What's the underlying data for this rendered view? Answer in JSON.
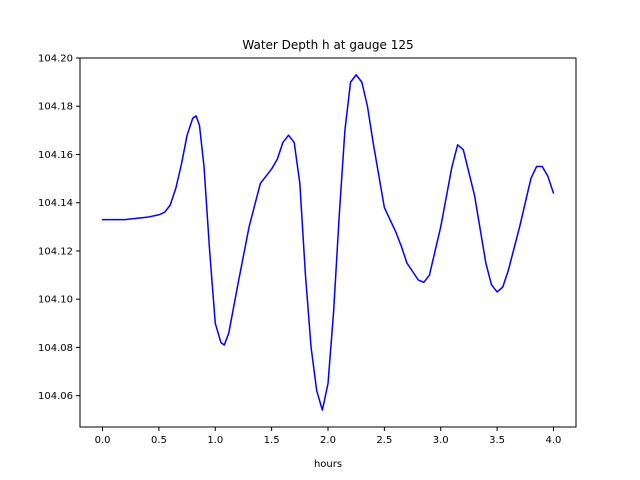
{
  "chart_data": {
    "type": "line",
    "title": "Water Depth h at gauge 125",
    "xlabel": "hours",
    "ylabel": "",
    "xlim": [
      -0.2,
      4.2
    ],
    "ylim": [
      104.047,
      104.2
    ],
    "grid": false,
    "xticks": [
      0.0,
      0.5,
      1.0,
      1.5,
      2.0,
      2.5,
      3.0,
      3.5,
      4.0
    ],
    "xtick_labels": [
      "0.0",
      "0.5",
      "1.0",
      "1.5",
      "2.0",
      "2.5",
      "3.0",
      "3.5",
      "4.0"
    ],
    "yticks": [
      104.06,
      104.08,
      104.1,
      104.12,
      104.14,
      104.16,
      104.18,
      104.2
    ],
    "ytick_labels": [
      "104.06",
      "104.08",
      "104.10",
      "104.12",
      "104.14",
      "104.16",
      "104.18",
      "104.20"
    ],
    "series": [
      {
        "color": "#0000ff",
        "x": [
          0.0,
          0.2,
          0.4,
          0.5,
          0.55,
          0.6,
          0.65,
          0.7,
          0.75,
          0.8,
          0.83,
          0.86,
          0.9,
          0.95,
          1.0,
          1.05,
          1.08,
          1.12,
          1.2,
          1.3,
          1.4,
          1.5,
          1.55,
          1.6,
          1.65,
          1.7,
          1.75,
          1.8,
          1.85,
          1.9,
          1.95,
          2.0,
          2.05,
          2.1,
          2.15,
          2.2,
          2.25,
          2.3,
          2.35,
          2.4,
          2.5,
          2.6,
          2.65,
          2.7,
          2.8,
          2.85,
          2.9,
          3.0,
          3.1,
          3.15,
          3.2,
          3.3,
          3.4,
          3.45,
          3.5,
          3.55,
          3.6,
          3.7,
          3.8,
          3.85,
          3.9,
          3.95,
          4.0
        ],
        "y": [
          104.133,
          104.133,
          104.134,
          104.135,
          104.136,
          104.139,
          104.146,
          104.156,
          104.168,
          104.175,
          104.176,
          104.172,
          104.155,
          104.12,
          104.09,
          104.082,
          104.081,
          104.086,
          104.106,
          104.13,
          104.148,
          104.154,
          104.158,
          104.165,
          104.168,
          104.165,
          104.148,
          104.11,
          104.08,
          104.062,
          104.054,
          104.065,
          104.095,
          104.135,
          104.17,
          104.19,
          104.193,
          104.19,
          104.18,
          104.165,
          104.138,
          104.128,
          104.122,
          104.115,
          104.108,
          104.107,
          104.11,
          104.13,
          104.155,
          104.164,
          104.162,
          104.143,
          104.115,
          104.106,
          104.103,
          104.105,
          104.112,
          104.13,
          104.15,
          104.155,
          104.155,
          104.151,
          104.144
        ]
      }
    ]
  }
}
